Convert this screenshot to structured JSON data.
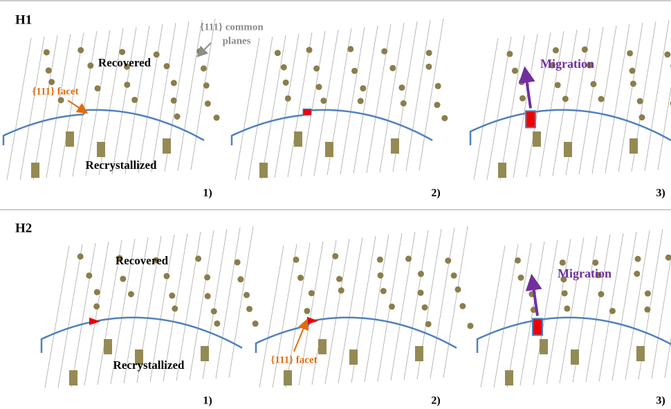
{
  "rows": [
    {
      "label": "H1",
      "annotations": {
        "planes": [
          "{111} common",
          "planes"
        ],
        "recovered": "Recovered",
        "facet": "{111} facet",
        "recrystallized": "Recrystallized",
        "migration": "Migration"
      },
      "panels": [
        {
          "number": "1)"
        },
        {
          "number": "2)"
        },
        {
          "number": "3)"
        }
      ]
    },
    {
      "label": "H2",
      "annotations": {
        "recovered": "Recovered",
        "facet": "{111} facet",
        "recrystallized": "Recrystallized",
        "migration": "Migration"
      },
      "panels": [
        {
          "number": "1)"
        },
        {
          "number": "2)"
        },
        {
          "number": "3)"
        }
      ]
    }
  ]
}
